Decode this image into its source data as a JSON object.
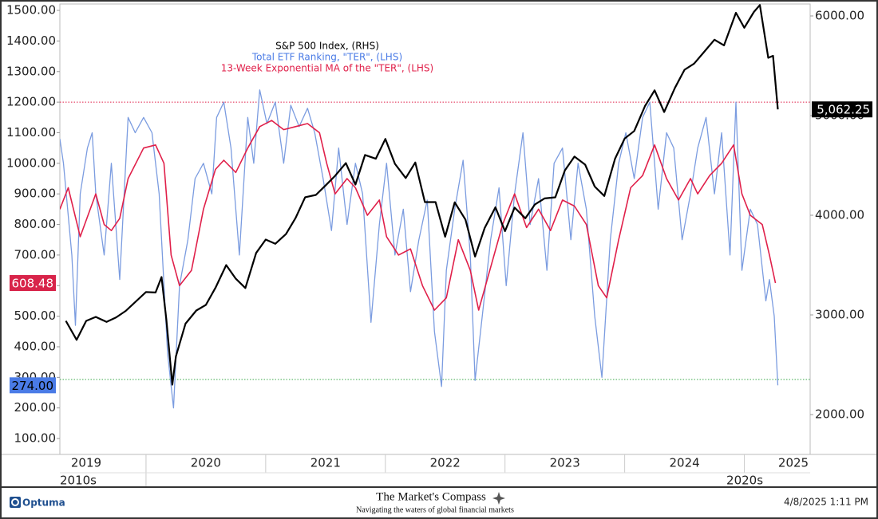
{
  "chart_data": {
    "type": "line",
    "legend": [
      "S&P 500 Index, (RHS)",
      "Total ETF Ranking, \"TER\", (LHS)",
      "13-Week Exponential MA of the \"TER\", (LHS)"
    ],
    "series": [
      {
        "name": "S&P 500 Index, (RHS)",
        "color": "#000000",
        "axis": "y2",
        "width": 2.2,
        "x": [
          2019.33,
          2019.42,
          2019.5,
          2019.58,
          2019.67,
          2019.75,
          2019.83,
          2019.92,
          2020.0,
          2020.08,
          2020.13,
          2020.17,
          2020.22,
          2020.25,
          2020.33,
          2020.42,
          2020.5,
          2020.58,
          2020.67,
          2020.75,
          2020.83,
          2020.92,
          2021.0,
          2021.08,
          2021.17,
          2021.25,
          2021.33,
          2021.42,
          2021.5,
          2021.58,
          2021.67,
          2021.75,
          2021.83,
          2021.92,
          2022.0,
          2022.08,
          2022.17,
          2022.25,
          2022.33,
          2022.42,
          2022.5,
          2022.58,
          2022.67,
          2022.75,
          2022.83,
          2022.92,
          2023.0,
          2023.08,
          2023.17,
          2023.25,
          2023.33,
          2023.42,
          2023.5,
          2023.58,
          2023.67,
          2023.75,
          2023.83,
          2023.92,
          2024.0,
          2024.08,
          2024.17,
          2024.25,
          2024.33,
          2024.42,
          2024.5,
          2024.58,
          2024.67,
          2024.75,
          2024.83,
          2024.93,
          2025.0,
          2025.08,
          2025.13,
          2025.2,
          2025.24,
          2025.28
        ],
        "values": [
          2940,
          2750,
          2940,
          2980,
          2930,
          2975,
          3040,
          3140,
          3230,
          3225,
          3380,
          2954,
          2300,
          2585,
          2912,
          3044,
          3100,
          3271,
          3500,
          3363,
          3270,
          3622,
          3756,
          3714,
          3811,
          3973,
          4181,
          4204,
          4298,
          4395,
          4523,
          4308,
          4605,
          4567,
          4766,
          4516,
          4374,
          4530,
          4132,
          4132,
          3785,
          4130,
          3955,
          3586,
          3872,
          4080,
          3840,
          4077,
          3970,
          4109,
          4169,
          4180,
          4450,
          4589,
          4508,
          4288,
          4194,
          4568,
          4770,
          4846,
          5096,
          5254,
          5036,
          5278,
          5460,
          5522,
          5648,
          5762,
          5705,
          6032,
          5882,
          6040,
          6110,
          5580,
          5600,
          5062.25
        ],
        "last_value_label": "5,062.25"
      },
      {
        "name": "Total ETF Ranking, \"TER\", (LHS)",
        "color": "#7b9ce0",
        "axis": "y",
        "width": 1.3,
        "x": [
          2019.28,
          2019.31,
          2019.38,
          2019.41,
          2019.45,
          2019.51,
          2019.55,
          2019.58,
          2019.65,
          2019.71,
          2019.78,
          2019.85,
          2019.91,
          2019.98,
          2020.05,
          2020.11,
          2020.18,
          2020.23,
          2020.28,
          2020.35,
          2020.41,
          2020.48,
          2020.55,
          2020.59,
          2020.65,
          2020.71,
          2020.78,
          2020.85,
          2020.9,
          2020.95,
          2021.01,
          2021.08,
          2021.15,
          2021.21,
          2021.28,
          2021.35,
          2021.41,
          2021.48,
          2021.55,
          2021.61,
          2021.68,
          2021.75,
          2021.81,
          2021.88,
          2021.95,
          2022.01,
          2022.08,
          2022.15,
          2022.21,
          2022.28,
          2022.35,
          2022.41,
          2022.47,
          2022.51,
          2022.58,
          2022.65,
          2022.71,
          2022.75,
          2022.81,
          2022.88,
          2022.95,
          2023.01,
          2023.08,
          2023.15,
          2023.21,
          2023.28,
          2023.35,
          2023.41,
          2023.48,
          2023.55,
          2023.61,
          2023.68,
          2023.75,
          2023.81,
          2023.88,
          2023.95,
          2024.01,
          2024.08,
          2024.15,
          2024.21,
          2024.28,
          2024.35,
          2024.41,
          2024.48,
          2024.55,
          2024.61,
          2024.68,
          2024.75,
          2024.81,
          2024.88,
          2024.93,
          2024.98,
          2025.05,
          2025.11,
          2025.18,
          2025.21,
          2025.25,
          2025.28
        ],
        "values": [
          1080,
          1000,
          700,
          470,
          900,
          1050,
          1100,
          900,
          700,
          1000,
          620,
          1150,
          1100,
          1150,
          1100,
          900,
          380,
          200,
          600,
          750,
          950,
          1000,
          900,
          1150,
          1200,
          1050,
          700,
          1150,
          1000,
          1240,
          1130,
          1200,
          1000,
          1190,
          1120,
          1180,
          1100,
          950,
          780,
          1050,
          800,
          1000,
          900,
          480,
          800,
          1000,
          700,
          850,
          580,
          750,
          880,
          450,
          270,
          650,
          850,
          1010,
          700,
          290,
          500,
          750,
          920,
          600,
          900,
          1100,
          800,
          950,
          650,
          1000,
          1050,
          750,
          1000,
          850,
          500,
          300,
          750,
          1000,
          1100,
          950,
          1150,
          1200,
          850,
          1100,
          1050,
          750,
          900,
          1050,
          1150,
          900,
          1100,
          700,
          1200,
          650,
          850,
          800,
          550,
          620,
          500,
          274
        ],
        "last_value_label": "274.00"
      },
      {
        "name": "13-Week Exponential MA of the \"TER\", (LHS)",
        "color": "#e0204a",
        "axis": "y",
        "width": 1.6,
        "x": [
          2019.28,
          2019.35,
          2019.45,
          2019.58,
          2019.65,
          2019.71,
          2019.78,
          2019.85,
          2019.98,
          2020.08,
          2020.15,
          2020.21,
          2020.28,
          2020.38,
          2020.48,
          2020.58,
          2020.65,
          2020.75,
          2020.85,
          2020.95,
          2021.05,
          2021.15,
          2021.25,
          2021.35,
          2021.45,
          2021.51,
          2021.58,
          2021.68,
          2021.75,
          2021.85,
          2021.95,
          2022.01,
          2022.11,
          2022.21,
          2022.31,
          2022.41,
          2022.51,
          2022.61,
          2022.71,
          2022.78,
          2022.88,
          2022.98,
          2023.08,
          2023.18,
          2023.28,
          2023.38,
          2023.48,
          2023.58,
          2023.68,
          2023.78,
          2023.85,
          2023.95,
          2024.05,
          2024.15,
          2024.25,
          2024.35,
          2024.45,
          2024.55,
          2024.61,
          2024.71,
          2024.81,
          2024.91,
          2024.98,
          2025.05,
          2025.15,
          2025.21,
          2025.26
        ],
        "values": [
          850,
          920,
          760,
          900,
          800,
          780,
          820,
          950,
          1050,
          1060,
          1000,
          700,
          600,
          650,
          850,
          980,
          1010,
          970,
          1050,
          1120,
          1140,
          1110,
          1120,
          1130,
          1100,
          1000,
          900,
          950,
          920,
          830,
          880,
          760,
          700,
          720,
          600,
          520,
          560,
          750,
          650,
          520,
          660,
          800,
          900,
          790,
          850,
          780,
          880,
          860,
          800,
          600,
          560,
          750,
          920,
          960,
          1060,
          950,
          880,
          950,
          900,
          960,
          1000,
          1060,
          900,
          830,
          800,
          700,
          608.48
        ],
        "last_value_label": "608.48"
      }
    ],
    "ylim": [
      48,
      1521
    ],
    "yticks": [
      {
        "value": 100,
        "label": "100.00"
      },
      {
        "value": 200,
        "label": "200.00"
      },
      {
        "value": 300,
        "label": "300.00"
      },
      {
        "value": 400,
        "label": "400.00"
      },
      {
        "value": 500,
        "label": "500.00"
      },
      {
        "value": 600,
        "label": "600.00"
      },
      {
        "value": 700,
        "label": "700.00"
      },
      {
        "value": 800,
        "label": "800.00"
      },
      {
        "value": 900,
        "label": "900.00"
      },
      {
        "value": 1000,
        "label": "1000.00"
      },
      {
        "value": 1100,
        "label": "1100.00"
      },
      {
        "value": 1200,
        "label": "1200.00"
      },
      {
        "value": 1300,
        "label": "1300.00"
      },
      {
        "value": 1400,
        "label": "1400.00"
      },
      {
        "value": 1500,
        "label": "1500.00"
      }
    ],
    "y2lim": [
      1600,
      6120
    ],
    "y2ticks": [
      {
        "value": 2000,
        "label": "2000.00"
      },
      {
        "value": 3000,
        "label": "3000.00"
      },
      {
        "value": 4000,
        "label": "4000.00"
      },
      {
        "value": 5000,
        "label": "5000.00"
      },
      {
        "value": 6000,
        "label": "6000.00"
      }
    ],
    "xlim": [
      2019.28,
      2025.55
    ],
    "xticks": [
      {
        "value": 2019.5,
        "label": "2019"
      },
      {
        "value": 2020.5,
        "label": "2020"
      },
      {
        "value": 2021.5,
        "label": "2021"
      },
      {
        "value": 2022.5,
        "label": "2022"
      },
      {
        "value": 2023.5,
        "label": "2023"
      },
      {
        "value": 2024.5,
        "label": "2024"
      },
      {
        "value": 2025.41,
        "label": "2025"
      }
    ],
    "era_labels": [
      {
        "value": 2019.28,
        "label": "2010s"
      },
      {
        "value": 2024.85,
        "label": "2020s"
      }
    ],
    "reference_lines": [
      {
        "value": 1200,
        "color": "#e0204a"
      },
      {
        "value": 293,
        "color": "#3aa84a"
      }
    ],
    "grid": false
  },
  "footer": {
    "logo": "Optuma",
    "brand": "The Market's Compass",
    "tagline": "Navigating the waters of global financial markets",
    "timestamp": "4/8/2025 1:11 PM"
  }
}
